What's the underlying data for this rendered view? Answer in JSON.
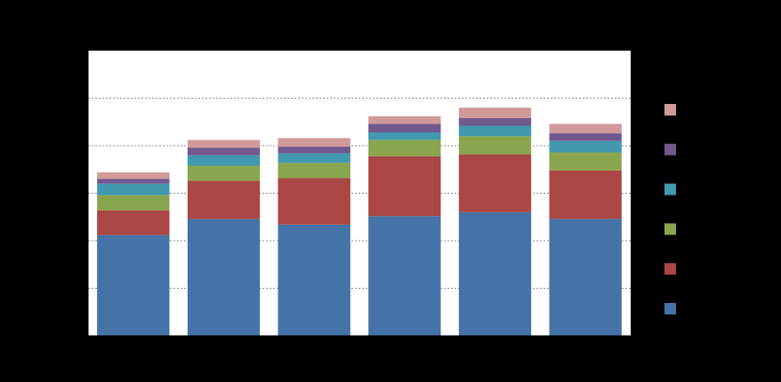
{
  "chart_data": {
    "type": "bar",
    "stacked": true,
    "categories": [
      "",
      "",
      "",
      "",
      "",
      ""
    ],
    "ylim": [
      0,
      300
    ],
    "yticks": [
      0,
      50,
      100,
      150,
      200,
      250,
      300
    ],
    "grid": true,
    "legend_position": "right",
    "series": [
      {
        "color": "#4572a7",
        "values": [
          106,
          123,
          117,
          126,
          130,
          123
        ]
      },
      {
        "color": "#aa4643",
        "values": [
          26,
          40,
          49,
          63,
          61,
          51
        ]
      },
      {
        "color": "#89a54e",
        "values": [
          16,
          16,
          16,
          17,
          19,
          19
        ]
      },
      {
        "color": "#4198af",
        "values": [
          12,
          11,
          10,
          8,
          11,
          12
        ]
      },
      {
        "color": "#71588f",
        "values": [
          5,
          8,
          7,
          9,
          8,
          8
        ]
      },
      {
        "color": "#d09a9b",
        "values": [
          7,
          8,
          9,
          8,
          11,
          10
        ]
      }
    ]
  }
}
